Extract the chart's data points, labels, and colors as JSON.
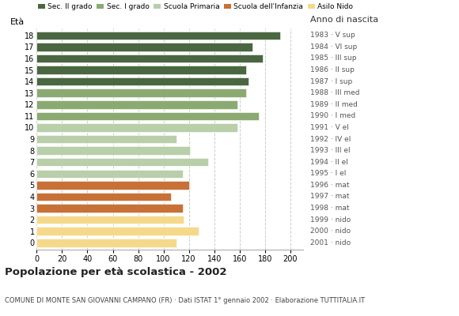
{
  "ages": [
    18,
    17,
    16,
    15,
    14,
    13,
    12,
    11,
    10,
    9,
    8,
    7,
    6,
    5,
    4,
    3,
    2,
    1,
    0
  ],
  "values": [
    192,
    170,
    178,
    165,
    167,
    165,
    158,
    175,
    158,
    110,
    121,
    135,
    115,
    120,
    106,
    115,
    116,
    128,
    110
  ],
  "colors": [
    "#4a6741",
    "#4a6741",
    "#4a6741",
    "#4a6741",
    "#4a6741",
    "#8aaa72",
    "#8aaa72",
    "#8aaa72",
    "#b8cfaa",
    "#b8cfaa",
    "#b8cfaa",
    "#b8cfaa",
    "#b8cfaa",
    "#c87137",
    "#c87137",
    "#c87137",
    "#f5d98b",
    "#f5d98b",
    "#f5d98b"
  ],
  "right_labels": [
    "1983 · V sup",
    "1984 · VI sup",
    "1985 · III sup",
    "1986 · II sup",
    "1987 · I sup",
    "1988 · III med",
    "1989 · II med",
    "1990 · I med",
    "1991 · V el",
    "1992 · IV el",
    "1993 · III el",
    "1994 · II el",
    "1995 · I el",
    "1996 · mat",
    "1997 · mat",
    "1998 · mat",
    "1999 · nido",
    "2000 · nido",
    "2001 · nido"
  ],
  "legend_labels": [
    "Sec. II grado",
    "Sec. I grado",
    "Scuola Primaria",
    "Scuola dell'Infanzia",
    "Asilo Nido"
  ],
  "legend_colors": [
    "#4a6741",
    "#8aaa72",
    "#b8cfaa",
    "#c87137",
    "#f5d98b"
  ],
  "xlabel_age": "Età",
  "xlabel_birth": "Anno di nascita",
  "xlim": [
    0,
    210
  ],
  "xticks": [
    0,
    20,
    40,
    60,
    80,
    100,
    120,
    140,
    160,
    180,
    200
  ],
  "title": "Popolazione per età scolastica - 2002",
  "subtitle": "COMUNE DI MONTE SAN GIOVANNI CAMPANO (FR) · Dati ISTAT 1° gennaio 2002 · Elaborazione TUTTITALIA.IT",
  "bar_height": 0.72,
  "bg_color": "#ffffff",
  "grid_color": "#cccccc"
}
